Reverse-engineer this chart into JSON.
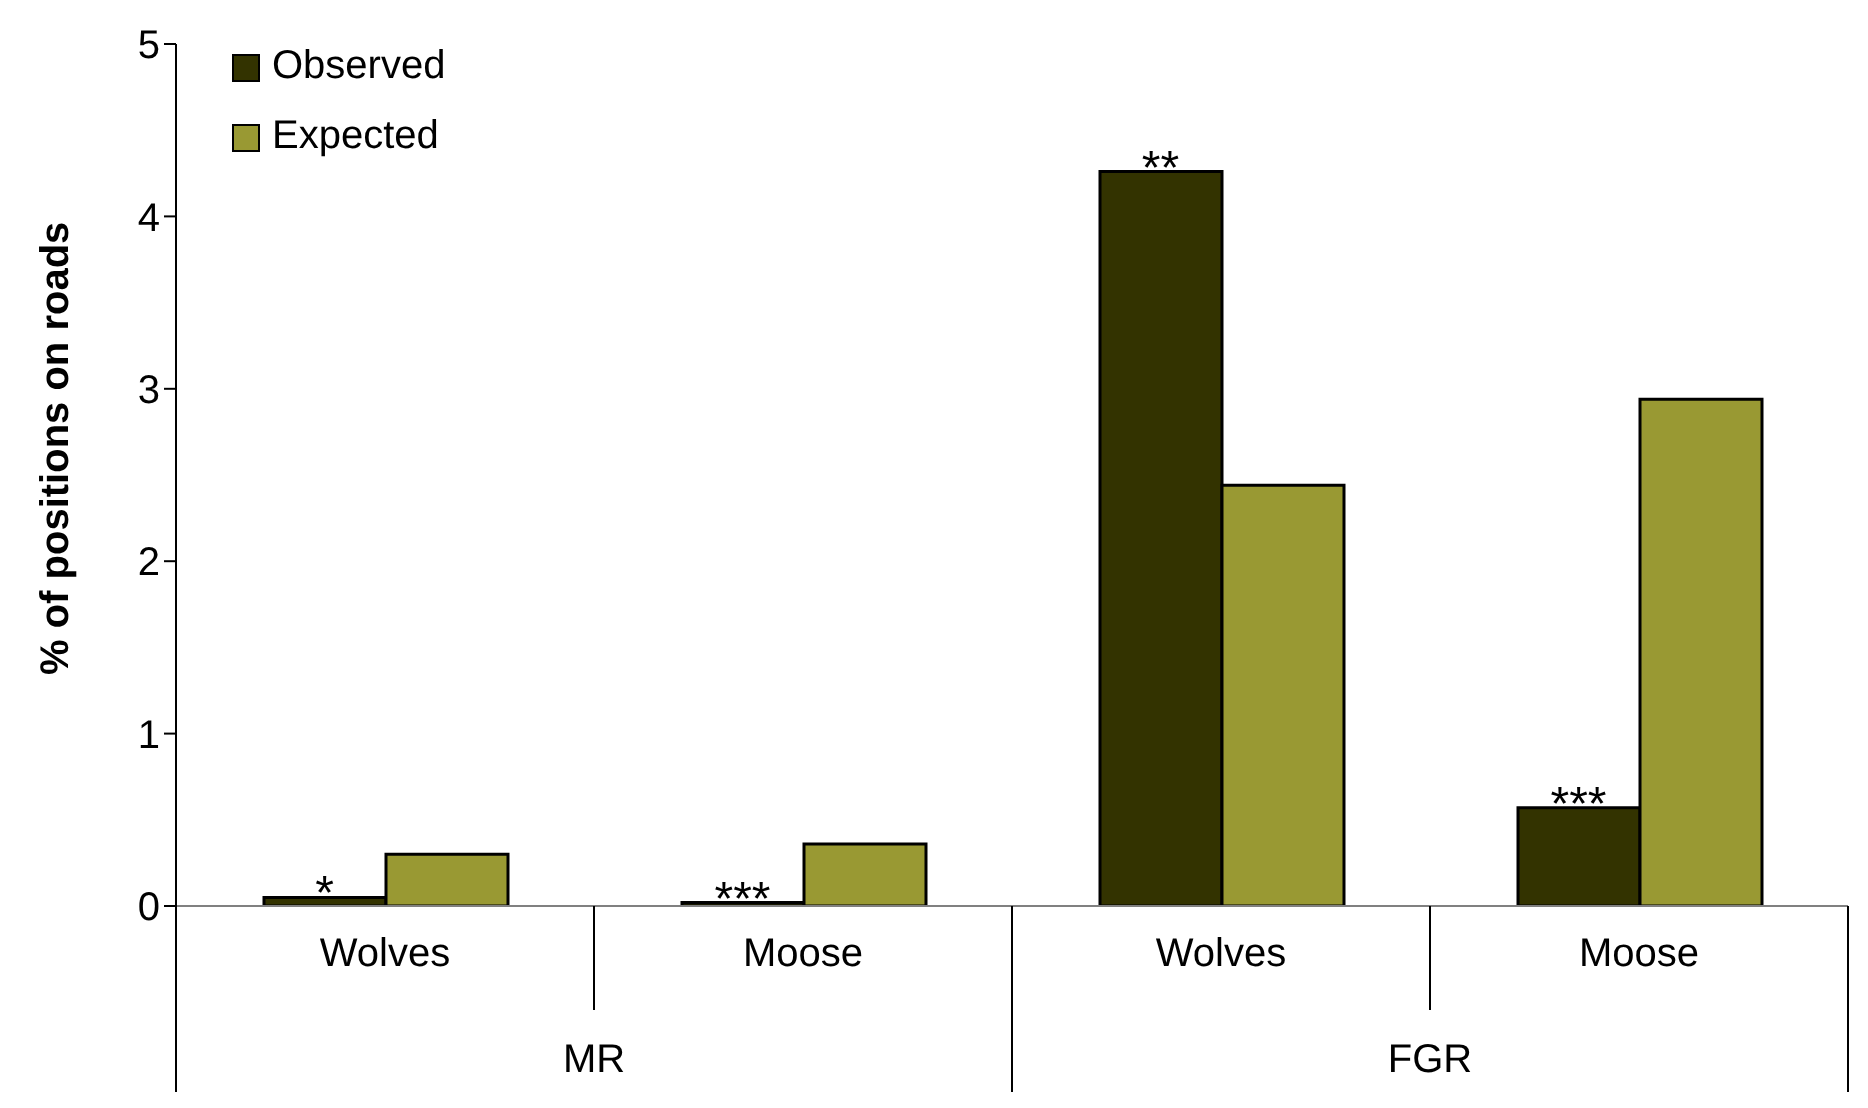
{
  "chart_data": {
    "type": "bar",
    "ylabel": "% of positions on roads",
    "categories": [
      "Wolves",
      "Moose",
      "Wolves",
      "Moose"
    ],
    "series": [
      {
        "name": "Observed",
        "color": "#333300",
        "values": [
          0.05,
          0.02,
          4.26,
          0.57
        ]
      },
      {
        "name": "Expected",
        "color": "#999933",
        "values": [
          0.3,
          0.36,
          2.44,
          2.94
        ]
      }
    ],
    "ylim": [
      0,
      5
    ],
    "yticks": [
      0,
      1,
      2,
      3,
      4,
      5
    ],
    "grid": false,
    "legend": "top left",
    "annotations": [
      "*",
      "***",
      "**",
      "***",
      "MR",
      "FGR"
    ]
  }
}
